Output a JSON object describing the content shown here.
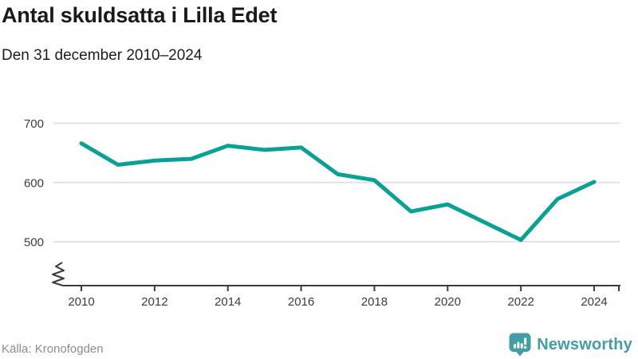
{
  "header": {
    "title": "Antal skuldsatta i Lilla Edet",
    "subtitle": "Den 31 december 2010–2024"
  },
  "footer": {
    "source": "Källa: Kronofogden",
    "brand": "Newsworthy"
  },
  "colors": {
    "line": "#08a295",
    "grid": "#e3e3e3",
    "axis": "#3c3c3c",
    "brand": "#429da7",
    "source_text": "#8c8c94"
  },
  "chart_data": {
    "type": "line",
    "title": "Antal skuldsatta i Lilla Edet",
    "subtitle": "Den 31 december 2010–2024",
    "x": [
      2010,
      2011,
      2012,
      2013,
      2014,
      2015,
      2016,
      2017,
      2018,
      2019,
      2020,
      2021,
      2022,
      2023,
      2024
    ],
    "series": [
      {
        "name": "Antal skuldsatta",
        "values": [
          666,
          630,
          637,
          640,
          662,
          655,
          659,
          614,
          604,
          551,
          563,
          533,
          503,
          572,
          601
        ]
      }
    ],
    "y_ticks": [
      700,
      600,
      500
    ],
    "x_ticks": [
      2010,
      2012,
      2014,
      2016,
      2018,
      2020,
      2022,
      2024
    ],
    "ylim": [
      500,
      700
    ],
    "axis_break": true,
    "grid": "horizontal",
    "legend": "none",
    "line_color": "#08a295"
  }
}
